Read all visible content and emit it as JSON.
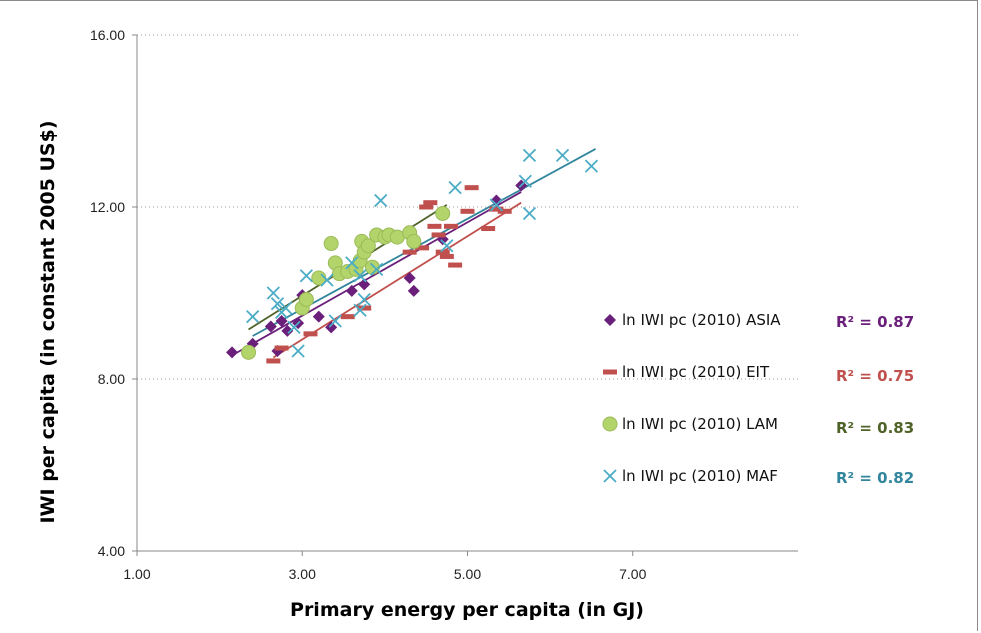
{
  "chart_data": {
    "type": "scatter",
    "xlabel": "Primary energy per capita (in GJ)",
    "ylabel": "IWI per capita (in constant 2005 US$)",
    "xlim": [
      1,
      9
    ],
    "ylim": [
      4,
      16
    ],
    "xticks": [
      "1.00",
      "3.00",
      "5.00",
      "7.00"
    ],
    "yticks": [
      "4.00",
      "8.00",
      "12.00",
      "16.00"
    ],
    "grid": "horizontal dotted",
    "legend_position": "right",
    "series": [
      {
        "name": "ln IWI pc (2010) ASIA",
        "marker": "diamond",
        "color": "#6a1f7a",
        "r2": "R² = 0.87",
        "r2_color": "#6a1f7a",
        "trend": [
          [
            2.15,
            8.55
          ],
          [
            5.65,
            12.35
          ]
        ],
        "points": [
          [
            2.15,
            8.62
          ],
          [
            2.4,
            8.82
          ],
          [
            2.7,
            8.65
          ],
          [
            2.62,
            9.22
          ],
          [
            2.75,
            9.35
          ],
          [
            2.82,
            9.12
          ],
          [
            2.95,
            9.3
          ],
          [
            3.0,
            9.95
          ],
          [
            3.2,
            9.45
          ],
          [
            3.35,
            9.2
          ],
          [
            3.6,
            10.05
          ],
          [
            3.75,
            10.2
          ],
          [
            4.3,
            10.35
          ],
          [
            4.35,
            10.05
          ],
          [
            4.7,
            11.25
          ],
          [
            5.35,
            12.15
          ],
          [
            5.65,
            12.5
          ]
        ]
      },
      {
        "name": "ln IWI pc (2010) EIT",
        "marker": "dash",
        "color": "#c0504d",
        "r2": "R² = 0.75",
        "r2_color": "#c0504d",
        "trend": [
          [
            2.65,
            8.5
          ],
          [
            5.65,
            12.1
          ]
        ],
        "points": [
          [
            2.65,
            8.42
          ],
          [
            2.75,
            8.72
          ],
          [
            3.1,
            9.05
          ],
          [
            3.55,
            9.45
          ],
          [
            3.75,
            9.65
          ],
          [
            4.3,
            10.95
          ],
          [
            4.45,
            11.05
          ],
          [
            4.5,
            12.0
          ],
          [
            4.55,
            12.1
          ],
          [
            4.6,
            11.55
          ],
          [
            4.65,
            11.35
          ],
          [
            4.7,
            10.95
          ],
          [
            4.75,
            10.85
          ],
          [
            4.8,
            11.55
          ],
          [
            4.85,
            10.65
          ],
          [
            5.05,
            12.45
          ],
          [
            5.0,
            11.9
          ],
          [
            5.25,
            11.5
          ],
          [
            5.35,
            11.95
          ],
          [
            5.45,
            11.9
          ]
        ]
      },
      {
        "name": "ln IWI pc (2010) LAM",
        "marker": "circle",
        "color": "#b3d46a",
        "r2": "R² = 0.83",
        "r2_color": "#4f6228",
        "trend": [
          [
            2.35,
            9.15
          ],
          [
            4.75,
            12.05
          ]
        ],
        "points": [
          [
            2.35,
            8.62
          ],
          [
            3.0,
            9.65
          ],
          [
            3.05,
            9.85
          ],
          [
            3.2,
            10.35
          ],
          [
            3.35,
            11.15
          ],
          [
            3.4,
            10.7
          ],
          [
            3.45,
            10.45
          ],
          [
            3.55,
            10.5
          ],
          [
            3.65,
            10.55
          ],
          [
            3.7,
            10.75
          ],
          [
            3.72,
            11.2
          ],
          [
            3.75,
            10.95
          ],
          [
            3.8,
            11.1
          ],
          [
            3.85,
            10.6
          ],
          [
            3.9,
            11.35
          ],
          [
            4.0,
            11.3
          ],
          [
            4.05,
            11.35
          ],
          [
            4.15,
            11.3
          ],
          [
            4.3,
            11.4
          ],
          [
            4.35,
            11.2
          ],
          [
            4.7,
            11.85
          ]
        ]
      },
      {
        "name": "ln IWI pc (2010) MAF",
        "marker": "x",
        "color": "#4bacc6",
        "r2": "R² = 0.82",
        "r2_color": "#31859c",
        "trend": [
          [
            2.4,
            9.0
          ],
          [
            6.55,
            13.35
          ]
        ],
        "points": [
          [
            2.4,
            9.45
          ],
          [
            2.65,
            10.0
          ],
          [
            2.7,
            9.75
          ],
          [
            2.75,
            9.55
          ],
          [
            2.8,
            9.65
          ],
          [
            2.9,
            9.2
          ],
          [
            2.95,
            8.65
          ],
          [
            3.05,
            10.4
          ],
          [
            3.3,
            10.3
          ],
          [
            3.4,
            9.35
          ],
          [
            3.6,
            10.7
          ],
          [
            3.7,
            10.4
          ],
          [
            3.7,
            9.6
          ],
          [
            3.75,
            9.85
          ],
          [
            3.9,
            10.55
          ],
          [
            3.95,
            12.15
          ],
          [
            4.75,
            11.1
          ],
          [
            4.85,
            12.45
          ],
          [
            5.35,
            12.05
          ],
          [
            5.7,
            12.6
          ],
          [
            5.75,
            13.2
          ],
          [
            5.75,
            11.85
          ],
          [
            6.15,
            13.2
          ],
          [
            6.5,
            12.95
          ]
        ]
      }
    ]
  }
}
